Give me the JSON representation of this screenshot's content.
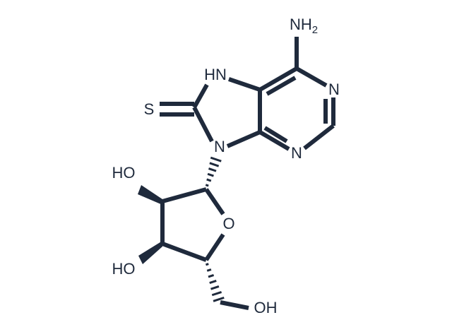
{
  "atoms": {
    "amine": "NH",
    "amine_subscript": "2",
    "n1": "N",
    "n3": "N",
    "n7": "HN",
    "sulfur": "S",
    "n9": "N",
    "hydroxyl_2": "HO",
    "ring_oxygen": "O",
    "hydroxyl_3": "HO",
    "hydroxyl_5": "OH"
  }
}
